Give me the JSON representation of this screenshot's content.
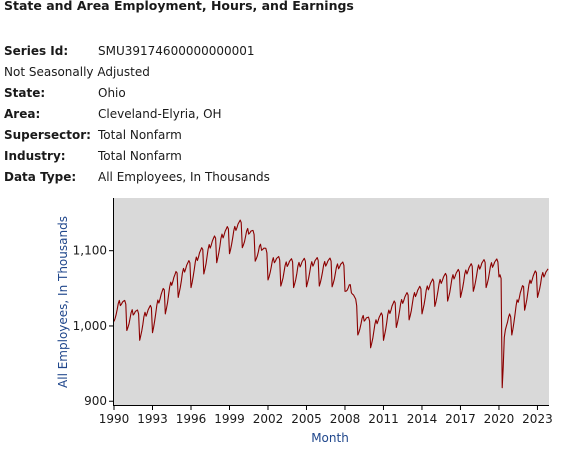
{
  "header": {
    "title": "State and Area Employment, Hours, and Earnings"
  },
  "series_info": {
    "series_id_label": "Series Id:",
    "series_id": "SMU39174600000000001",
    "seasonal": "Not Seasonally Adjusted",
    "state_label": "State:",
    "state": "Ohio",
    "area_label": "Area:",
    "area": "Cleveland-Elyria, OH",
    "supersector_label": "Supersector:",
    "supersector": "Total Nonfarm",
    "industry_label": "Industry:",
    "industry": "Total Nonfarm",
    "datatype_label": "Data Type:",
    "datatype": "All Employees, In Thousands"
  },
  "chart_data": {
    "type": "line",
    "title": "",
    "xlabel": "Month",
    "ylabel": "All Employees, In Thousands",
    "xlim": [
      1990,
      2023.9
    ],
    "ylim": [
      895,
      1170
    ],
    "x_ticks": [
      "1990",
      "1993",
      "1996",
      "1999",
      "2002",
      "2005",
      "2008",
      "2011",
      "2014",
      "2017",
      "2020",
      "2023"
    ],
    "y_ticks": [
      "900",
      "1,000",
      "1,100"
    ],
    "grid": false,
    "line_color": "#8b0000",
    "plot_background": "#d9d9d9",
    "series": [
      {
        "annual_level": {
          "1990": 1030,
          "1991": 1018,
          "1992": 1005,
          "1993": 1015,
          "1994": 1040,
          "1995": 1062,
          "1996": 1075,
          "1997": 1093,
          "1998": 1108,
          "1999": 1120,
          "2000": 1128,
          "2001": 1110,
          "2002": 1085,
          "2003": 1077,
          "2004": 1075,
          "2005": 1076,
          "2006": 1077,
          "2007": 1076,
          "2008": 1070,
          "2009": 1012,
          "2010": 995,
          "2011": 1005,
          "2012": 1022,
          "2013": 1032,
          "2014": 1040,
          "2015": 1050,
          "2016": 1057,
          "2017": 1062,
          "2018": 1070,
          "2019": 1075,
          "2020": 1075,
          "2021": 1012,
          "2022": 1045,
          "2023": 1062
        },
        "monthly_seasonal_pattern": [
          -24,
          -19,
          -13,
          -5,
          4,
          9,
          3,
          6,
          10,
          12,
          14,
          10
        ],
        "covid_2020_monthly": [
          1065,
          1068,
          1063,
          918,
          945,
          985,
          995,
          1000,
          1005,
          1012,
          1016,
          1012
        ]
      }
    ]
  },
  "colors": {
    "axis_label": "#20478c",
    "line": "#8b0000",
    "plot_bg": "#d9d9d9"
  }
}
